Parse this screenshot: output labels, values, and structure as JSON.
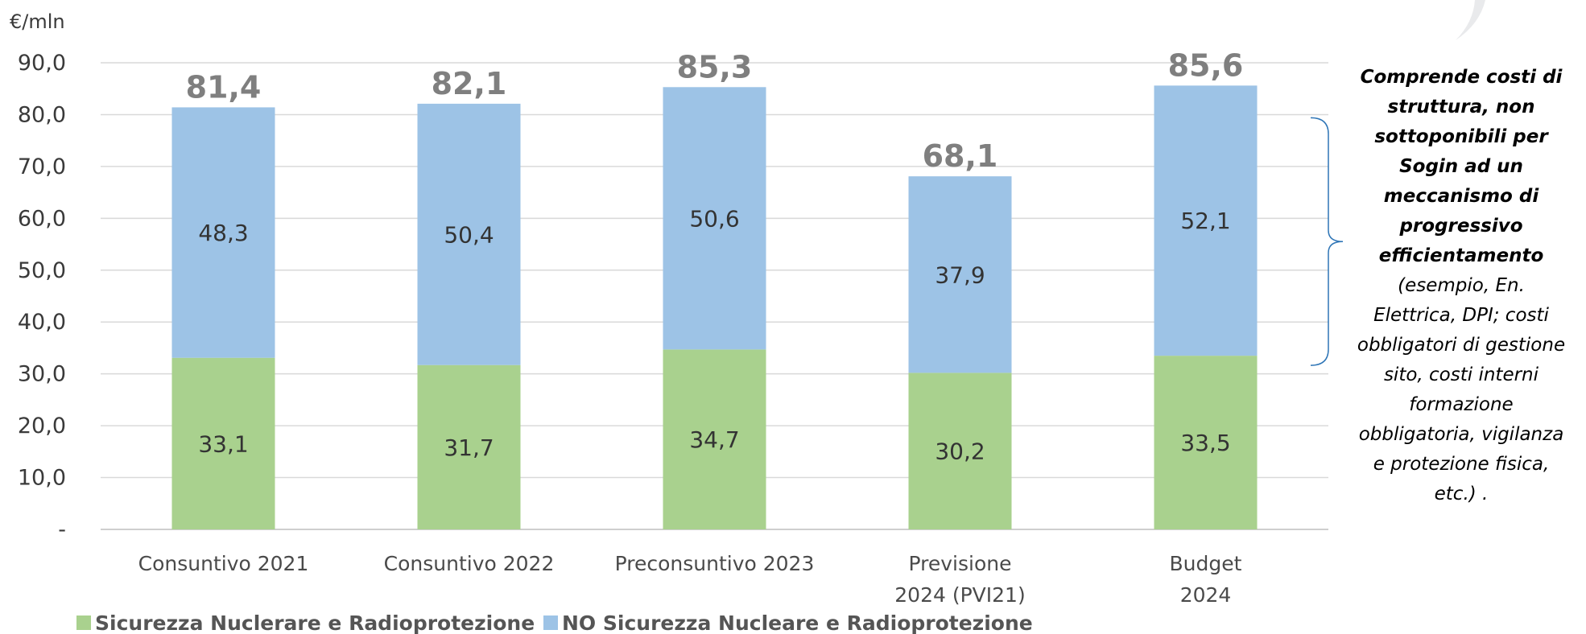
{
  "chart_data": {
    "type": "bar",
    "stacked": true,
    "unit_label": "€/mln",
    "ylim": [
      0,
      90
    ],
    "yticks": [
      {
        "v": 0,
        "label": "-"
      },
      {
        "v": 10,
        "label": "10,0"
      },
      {
        "v": 20,
        "label": "20,0"
      },
      {
        "v": 30,
        "label": "30,0"
      },
      {
        "v": 40,
        "label": "40,0"
      },
      {
        "v": 50,
        "label": "50,0"
      },
      {
        "v": 60,
        "label": "60,0"
      },
      {
        "v": 70,
        "label": "70,0"
      },
      {
        "v": 80,
        "label": "80,0"
      },
      {
        "v": 90,
        "label": "90,0"
      }
    ],
    "grid": true,
    "legend_position": "bottom-left",
    "categories": [
      [
        "Consuntivo 2021"
      ],
      [
        "Consuntivo 2022"
      ],
      [
        "Preconsuntivo 2023"
      ],
      [
        "Previsione",
        "2024 (PVI21)"
      ],
      [
        "Budget",
        "2024"
      ]
    ],
    "series": [
      {
        "name": "Sicurezza Nuclerare e Radioprotezione",
        "color": "#a9d18e",
        "values": [
          33.1,
          31.7,
          34.7,
          30.2,
          33.5
        ],
        "labels": [
          "33,1",
          "31,7",
          "34,7",
          "30,2",
          "33,5"
        ]
      },
      {
        "name": "NO Sicurezza Nucleare e Radioprotezione",
        "color": "#9dc3e6",
        "values": [
          48.3,
          50.4,
          50.6,
          37.9,
          52.1
        ],
        "labels": [
          "48,3",
          "50,4",
          "50,6",
          "37,9",
          "52,1"
        ]
      }
    ],
    "totals": [
      "81,4",
      "82,1",
      "85,3",
      "68,1",
      "85,6"
    ],
    "annotation": {
      "bold_lines": [
        "Comprende costi di",
        "struttura, non",
        "sottoponibili per",
        "Sogin ad un",
        "meccanismo di",
        "progressivo",
        "efficientamento"
      ],
      "normal_lines": [
        "(esempio, En.",
        "Elettrica, DPI; costi",
        "obbligatori di gestione",
        "sito, costi interni",
        "formazione",
        "obbligatoria, vigilanza",
        "e protezione fisica,",
        "etc.) ."
      ]
    }
  }
}
